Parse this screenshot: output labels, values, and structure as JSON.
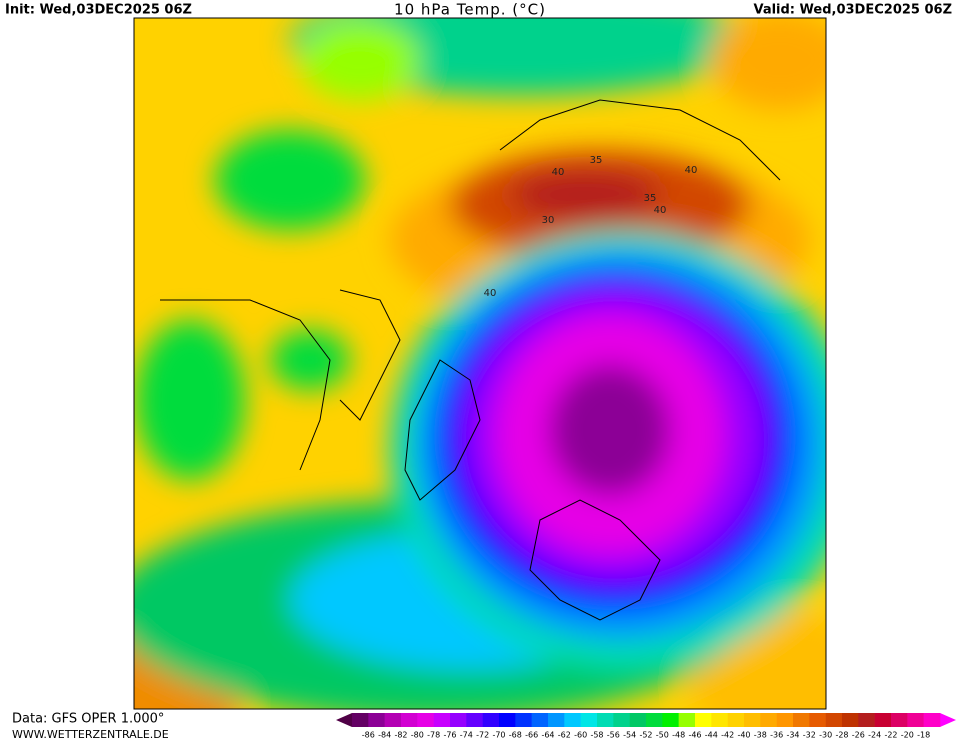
{
  "header": {
    "init": "Init: Wed,03DEC2025 06Z",
    "title": "10 hPa Temp. (°C)",
    "valid": "Valid: Wed,03DEC2025 06Z"
  },
  "footer": {
    "data": "Data: GFS OPER 1.000°",
    "site": "WWW.WETTERZENTRALE.DE"
  },
  "map": {
    "contour_labels": [
      "40",
      "35",
      "30",
      "40",
      "35",
      "40",
      "40"
    ]
  },
  "colorbar": {
    "labels": [
      -86,
      -84,
      -82,
      -80,
      -78,
      -76,
      -74,
      -72,
      -70,
      -68,
      -66,
      -64,
      -62,
      -60,
      -58,
      -56,
      -54,
      -52,
      -50,
      -48,
      -46,
      -44,
      -42,
      -40,
      -38,
      -36,
      -34,
      -32,
      -30,
      -28,
      -26,
      -24,
      -22,
      -20,
      -18
    ],
    "colors": [
      "#640064",
      "#8c0096",
      "#b400b4",
      "#d200d2",
      "#e600e6",
      "#c800ff",
      "#9600ff",
      "#6400ff",
      "#3200ff",
      "#0000ff",
      "#0032ff",
      "#0064ff",
      "#0096ff",
      "#00c8ff",
      "#00e6e6",
      "#00dcb4",
      "#00d28c",
      "#00c864",
      "#00dc3c",
      "#00f000",
      "#96ff00",
      "#ffff00",
      "#ffe600",
      "#ffd200",
      "#ffbe00",
      "#ffaa00",
      "#ff9600",
      "#f07800",
      "#e65a00",
      "#d24600",
      "#be3200",
      "#b41e1e",
      "#c80032",
      "#dc0064",
      "#f00096",
      "#ff00c8"
    ]
  }
}
